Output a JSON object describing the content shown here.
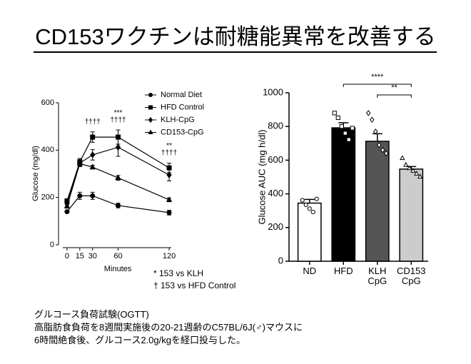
{
  "title": "CD153ワクチンは耐糖能異常を改善する",
  "chart_data": [
    {
      "type": "line",
      "xlabel": "Minutes",
      "ylabel": "Glucose (mg/dl)",
      "x": [
        0,
        15,
        30,
        60,
        120
      ],
      "xlim": [
        -10,
        125
      ],
      "xticks": [
        0,
        15,
        30,
        60,
        120
      ],
      "ylim": [
        0,
        600
      ],
      "yticks": [
        0,
        200,
        400,
        600
      ],
      "series": [
        {
          "name": "Normal Diet",
          "marker": "circle",
          "color": "#000000",
          "values": [
            140,
            207,
            207,
            166,
            136
          ],
          "errors": [
            5,
            15,
            15,
            10,
            10
          ]
        },
        {
          "name": "HFD Control",
          "marker": "square",
          "color": "#000000",
          "values": [
            185,
            350,
            455,
            455,
            325
          ],
          "errors": [
            10,
            15,
            22,
            30,
            20
          ]
        },
        {
          "name": "KLH-CpG",
          "marker": "diamond",
          "color": "#000000",
          "values": [
            175,
            345,
            380,
            412,
            295
          ],
          "errors": [
            10,
            15,
            22,
            38,
            25
          ]
        },
        {
          "name": "CD153-CpG",
          "marker": "triangle",
          "color": "#000000",
          "values": [
            163,
            343,
            328,
            283,
            190
          ],
          "errors": [
            8,
            10,
            8,
            10,
            8
          ]
        }
      ],
      "annotations": [
        {
          "x": 30,
          "text": "††††"
        },
        {
          "x": 60,
          "text": "***"
        },
        {
          "x": 60,
          "text": "††††"
        },
        {
          "x": 120,
          "text": "**"
        },
        {
          "x": 120,
          "text": "††††"
        }
      ],
      "footnotes": [
        "*  153 vs KLH",
        "† 153 vs HFD Control"
      ]
    },
    {
      "type": "bar",
      "ylabel": "Glucose AUC (mg h/dl)",
      "categories": [
        "ND",
        "HFD",
        "KLH CpG",
        "CD153 CpG"
      ],
      "values": [
        345,
        792,
        712,
        547
      ],
      "errors": [
        22,
        30,
        45,
        15
      ],
      "colors": [
        "#ffffff",
        "#000000",
        "#555555",
        "#cccccc"
      ],
      "point_markers": [
        "circle",
        "square",
        "diamond",
        "triangle"
      ],
      "points": [
        [
          362,
          335,
          312,
          292,
          370
        ],
        [
          880,
          852,
          800,
          760,
          722,
          790
        ],
        [
          880,
          840,
          770,
          690,
          660,
          640
        ],
        [
          612,
          572,
          552,
          537,
          520,
          502
        ]
      ],
      "ylim": [
        0,
        1000
      ],
      "yticks": [
        0,
        200,
        400,
        600,
        800,
        1000
      ],
      "comparisons": [
        {
          "between": [
            "HFD",
            "CD153 CpG"
          ],
          "label": "****"
        },
        {
          "between": [
            "KLH CpG",
            "CD153 CpG"
          ],
          "label": "**"
        }
      ]
    }
  ],
  "notes": [
    "グルコース負荷試験(OGTT)",
    "高脂肪食負荷を8週間実施後の20-21週齢のC57BL/6J(♂)マウスに",
    "6時間絶食後、グルコース2.0g/kgを経口投与した。"
  ]
}
